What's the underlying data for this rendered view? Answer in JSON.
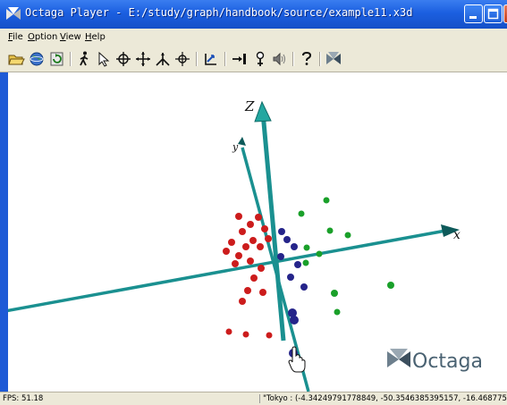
{
  "window": {
    "title": "Octaga Player  -  E:/study/graph/handbook/source/example11.x3d",
    "icon": "octaga-logo-icon",
    "controls": [
      "minimize-icon",
      "maximize-icon",
      "close-icon"
    ]
  },
  "menu": {
    "file": {
      "mnemonic": "F",
      "rest": "ile"
    },
    "option": {
      "mnemonic": "O",
      "rest": "ption"
    },
    "view": {
      "mnemonic": "V",
      "rest": "iew"
    },
    "help": {
      "mnemonic": "H",
      "rest": "elp"
    }
  },
  "toolbar": {
    "buttons": [
      "open-folder-icon",
      "globe-icon",
      "refresh-icon",
      "walk-icon",
      "pointer-icon",
      "examine-icon",
      "pan-icon",
      "fly-icon",
      "crosshair-icon",
      "straighten-icon",
      "seek-icon",
      "headlight-icon",
      "speaker-icon",
      "help-icon",
      "octaga-icon"
    ]
  },
  "scene": {
    "axis_labels": {
      "z": "Z",
      "y": "y",
      "x": "x"
    },
    "watermark": "Octaga",
    "axis_color": "#1a9090",
    "point_colors": {
      "red": "#cc1c1c",
      "blue": "#25248a",
      "green": "#1aa02a"
    }
  },
  "status": {
    "fps": "FPS: 51.18",
    "coords": "\"Tokyo : (-4.34249791778849, -50.3546385395157, -16.4687750"
  }
}
